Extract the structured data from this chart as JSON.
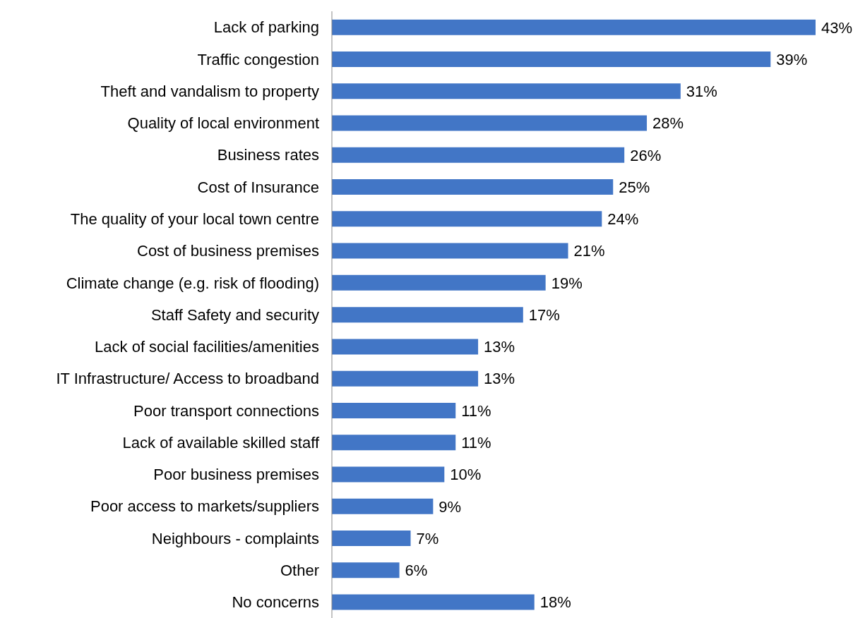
{
  "chart_data": {
    "type": "bar",
    "orientation": "horizontal",
    "categories": [
      "Lack of parking",
      "Traffic congestion",
      "Theft and vandalism to property",
      "Quality of local environment",
      "Business rates",
      "Cost of Insurance",
      "The quality of your local town centre",
      "Cost of business premises",
      "Climate change (e.g. risk of flooding)",
      "Staff Safety and security",
      "Lack of social facilities/amenities",
      "IT Infrastructure/ Access to broadband",
      "Poor transport connections",
      "Lack of available skilled staff",
      "Poor business premises",
      "Poor access to markets/suppliers",
      "Neighbours - complaints",
      "Other",
      "No concerns"
    ],
    "values": [
      43,
      39,
      31,
      28,
      26,
      25,
      24,
      21,
      19,
      17,
      13,
      13,
      11,
      11,
      10,
      9,
      7,
      6,
      18
    ],
    "value_labels": [
      "43%",
      "39%",
      "31%",
      "28%",
      "26%",
      "25%",
      "24%",
      "21%",
      "19%",
      "17%",
      "13%",
      "13%",
      "11%",
      "11%",
      "10%",
      "9%",
      "7%",
      "6%",
      "18%"
    ],
    "color": "#4276c6",
    "grid": false,
    "legend": false
  }
}
